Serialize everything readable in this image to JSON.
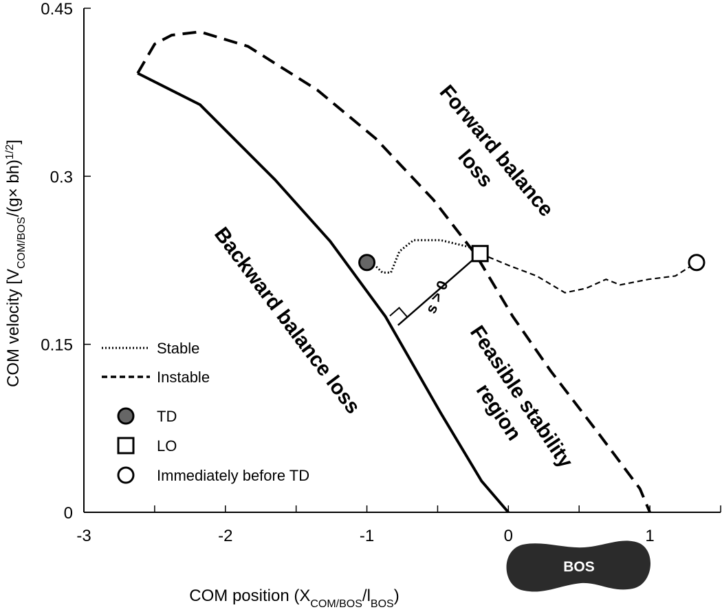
{
  "chart_data": {
    "type": "line",
    "x_label": [
      {
        "text": "COM position (X"
      },
      {
        "text": "COM/BOS",
        "sub": true
      },
      {
        "text": "/l"
      },
      {
        "text": "BOS",
        "sub": true
      },
      {
        "text": ")"
      }
    ],
    "y_label": [
      {
        "text": "COM velocity [V"
      },
      {
        "text": "COM/BOS",
        "sub": true
      },
      {
        "text": "/(g× bh)"
      },
      {
        "text": "1/2",
        "sup": true
      },
      {
        "text": "]"
      }
    ],
    "xlim": [
      -3,
      1.5
    ],
    "ylim": [
      0,
      0.45
    ],
    "xticks": [
      -3,
      -2,
      -1,
      0,
      1
    ],
    "x_minor_ticks": [
      -2.5,
      -1.5,
      -0.5,
      0.5,
      1.5
    ],
    "yticks": [
      0,
      0.15,
      0.3,
      0.45
    ],
    "legend": "lower left",
    "series": [
      {
        "dash": "solid",
        "color": "#000000",
        "x": [
          -2.62,
          -2.18,
          -1.99,
          -1.65,
          -1.26,
          -0.87,
          -0.48,
          -0.19,
          0
        ],
        "values": [
          0.392,
          0.364,
          0.34,
          0.297,
          0.242,
          0.175,
          0.089,
          0.028,
          0
        ]
      },
      {
        "dash": "dashed",
        "color": "#000000",
        "x": [
          -2.62,
          -2.5,
          -2.38,
          -2.18,
          -1.84,
          -1.35,
          -0.94,
          -0.53,
          -0.23,
          0.03,
          0.3,
          0.64,
          0.93,
          1.0
        ],
        "values": [
          0.392,
          0.418,
          0.426,
          0.429,
          0.416,
          0.377,
          0.334,
          0.279,
          0.23,
          0.175,
          0.126,
          0.07,
          0.021,
          0
        ]
      },
      {
        "name": "Stable",
        "dash": "dotted",
        "color": "#000000",
        "x": [
          -1,
          -0.94,
          -0.89,
          -0.83,
          -0.77,
          -0.67,
          -0.48,
          -0.28,
          -0.2
        ],
        "values": [
          0.223,
          0.22,
          0.214,
          0.214,
          0.233,
          0.243,
          0.243,
          0.237,
          0.231
        ]
      },
      {
        "name": "Instable",
        "dash": "thin-dashed",
        "color": "#000000",
        "x": [
          -0.2,
          0.01,
          0.2,
          0.4,
          0.55,
          0.69,
          0.79,
          0.99,
          1.18,
          1.33
        ],
        "values": [
          0.231,
          0.22,
          0.211,
          0.196,
          0.2,
          0.208,
          0.203,
          0.208,
          0.211,
          0.223
        ]
      }
    ],
    "markers": [
      {
        "name": "TD",
        "shape": "circle",
        "fill": "#666666",
        "x": -1,
        "y": 0.223
      },
      {
        "name": "LO",
        "shape": "square",
        "fill": "#ffffff",
        "x": -0.2,
        "y": 0.231
      },
      {
        "name": "Immediately before TD",
        "shape": "circle",
        "fill": "#ffffff",
        "x": 1.33,
        "y": 0.223
      }
    ],
    "s_segment": {
      "label": "s > 0",
      "x": [
        -0.2,
        -0.78
      ],
      "y": [
        0.231,
        0.167
      ]
    },
    "annotations": [
      {
        "lines": [
          "Forward balance",
          "loss"
        ]
      },
      {
        "lines": [
          "Backward balance loss"
        ]
      },
      {
        "lines": [
          "Feasible stability",
          "region"
        ]
      }
    ],
    "bos_label": "BOS"
  }
}
